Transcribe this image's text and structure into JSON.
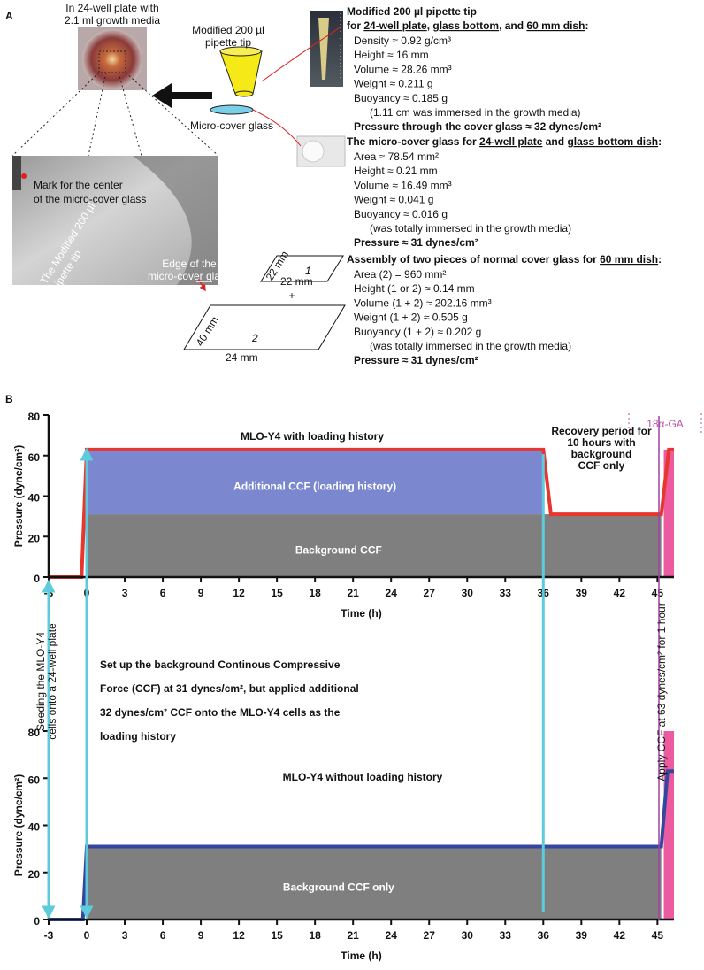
{
  "panel_a": {
    "label": "A",
    "plate_caption": [
      "In 24-well plate with",
      "2.1 ml growth media"
    ],
    "tip_caption": [
      "Modified 200 µl",
      "pipette tip"
    ],
    "glass_caption": "Micro-cover glass",
    "mark_note": [
      "Mark for the center",
      "of the micro-cover glass"
    ],
    "tip_note": [
      "The Modified 200 µl",
      "pipette tip"
    ],
    "edge_note": [
      "Edge of the",
      "micro-cover glass"
    ],
    "blocks": [
      {
        "heading": [
          "Modified 200 µl pipette tip",
          [
            "for ",
            {
              "text": "24-well plate",
              "underline": true
            },
            ", ",
            {
              "text": "glass bottom",
              "underline": true
            },
            ", and ",
            {
              "text": "60 mm dish",
              "underline": true
            },
            ":"
          ]
        ],
        "lines": [
          "Density ≈ 0.92 g/cm³",
          "Height ≈ 16 mm",
          "Volume ≈ 28.26 mm³",
          "Weight ≈ 0.211 g",
          "Buoyancy ≈ 0.185 g",
          "(1.11 cm was immersed in the growth media)",
          [
            "Pressure through the cover glass ≈ ",
            {
              "text": "32 dynes/cm²",
              "bold": true
            }
          ]
        ]
      },
      {
        "heading": [
          [
            "The micro-cover glass for ",
            {
              "text": "24-well plate",
              "underline": true
            },
            " and ",
            {
              "text": "glass bottom dish",
              "underline": true
            },
            ":"
          ]
        ],
        "lines": [
          "Area ≈ 78.54 mm²",
          "Height ≈ 0.21 mm",
          "Volume ≈ 16.49 mm³",
          "Weight ≈ 0.041 g",
          "Buoyancy ≈ 0.016 g",
          "(was totally immersed in the growth media)",
          [
            "Pressure ≈ ",
            {
              "text": "31 dynes/cm²",
              "bold": true
            }
          ]
        ]
      },
      {
        "heading": [
          [
            "Assembly of two pieces of normal cover glass for ",
            {
              "text": "60 mm dish",
              "underline": true
            },
            ":"
          ]
        ],
        "lines": [
          "Area (2) = 960 mm²",
          "Height (1 or 2) ≈ 0.14 mm",
          "Volume (1 + 2) ≈ 202.16 mm³",
          "Weight (1 + 2) ≈ 0.505 g",
          "Buoyancy (1 + 2) ≈ 0.202 g",
          "(was totally immersed in the growth media)",
          [
            "Pressure ≈ ",
            {
              "text": "31 dynes/cm²",
              "bold": true
            }
          ]
        ]
      }
    ],
    "glass_1": {
      "number": "1",
      "side": "22 mm",
      "bottom": "22 mm"
    },
    "plus": "+",
    "glass_2": {
      "number": "2",
      "side": "40 mm",
      "bottom": "24 mm"
    }
  },
  "panel_b": {
    "label": "B",
    "middle_text": [
      "Set up the background ",
      {
        "text": "Continous Compressive",
        "bold": true
      },
      {
        "text": "Force (CCF)",
        "bold": true
      },
      " at 31 dynes/cm², but applied additional",
      "32 dynes/cm² CCF onto the MLO-Y4 cells as the",
      "loading history"
    ],
    "seeding_note": [
      "Seeding the MLO-Y4",
      "cells onto a 24-well plate"
    ],
    "apply_note": "Apply CCF at 63 dynes/cm² for 1 hour",
    "guides": {
      "color": "#5ecbdc",
      "x": [
        -3,
        0,
        36
      ]
    }
  },
  "chart_data": [
    {
      "type": "line",
      "title": "MLO-Y4 with loading history",
      "x_label": "Time (h)",
      "y_label": "Pressure (dyne/cm²)",
      "xlim": [
        -3,
        46.3
      ],
      "ylim": [
        0,
        80
      ],
      "xticks": [
        -3,
        0,
        3,
        6,
        9,
        12,
        15,
        18,
        21,
        24,
        27,
        30,
        33,
        36,
        39,
        42,
        45
      ],
      "yticks": [
        0,
        20,
        40,
        60,
        80
      ],
      "regions": [
        {
          "label": "Background CCF",
          "color": "#7f7f7f",
          "x": [
            0,
            45.3
          ],
          "y": [
            0,
            31
          ]
        },
        {
          "label": "Additional CCF (loading history)",
          "color": "#7b88cf",
          "x": [
            0,
            36
          ],
          "y": [
            31,
            63
          ]
        },
        {
          "color": "#ec5ba0",
          "x": [
            45.5,
            46.3
          ],
          "y": [
            0,
            63
          ]
        }
      ],
      "series": [
        {
          "color": "#e8352e",
          "x": [
            -3,
            -0.4,
            0,
            36,
            36.6,
            45.3,
            45.9,
            46.3
          ],
          "values": [
            0,
            0,
            63,
            63,
            31,
            31,
            63,
            63
          ]
        }
      ],
      "annotation": [
        "Recovery period for",
        "10 hours with",
        "background",
        "CCF only"
      ],
      "ga_label": "18α-GA"
    },
    {
      "type": "line",
      "title": "MLO-Y4 without loading history",
      "x_label": "Time (h)",
      "y_label": "Pressure (dyne/cm²)",
      "xlim": [
        -3,
        46.3
      ],
      "ylim": [
        0,
        80
      ],
      "xticks": [
        -3,
        0,
        3,
        6,
        9,
        12,
        15,
        18,
        21,
        24,
        27,
        30,
        33,
        36,
        39,
        42,
        45
      ],
      "yticks": [
        0,
        20,
        40,
        60,
        80
      ],
      "regions": [
        {
          "label": "Background CCF only",
          "color": "#7f7f7f",
          "x": [
            0,
            45.3
          ],
          "y": [
            0,
            31
          ]
        },
        {
          "color": "#ec5ba0",
          "x": [
            45.5,
            46.3
          ],
          "y": [
            0,
            80
          ]
        }
      ],
      "series": [
        {
          "color": "#3546a0",
          "x": [
            -3,
            -0.3,
            0,
            45.3,
            45.8,
            46.3
          ],
          "values": [
            0,
            0,
            31,
            31,
            63,
            63
          ]
        }
      ]
    }
  ]
}
